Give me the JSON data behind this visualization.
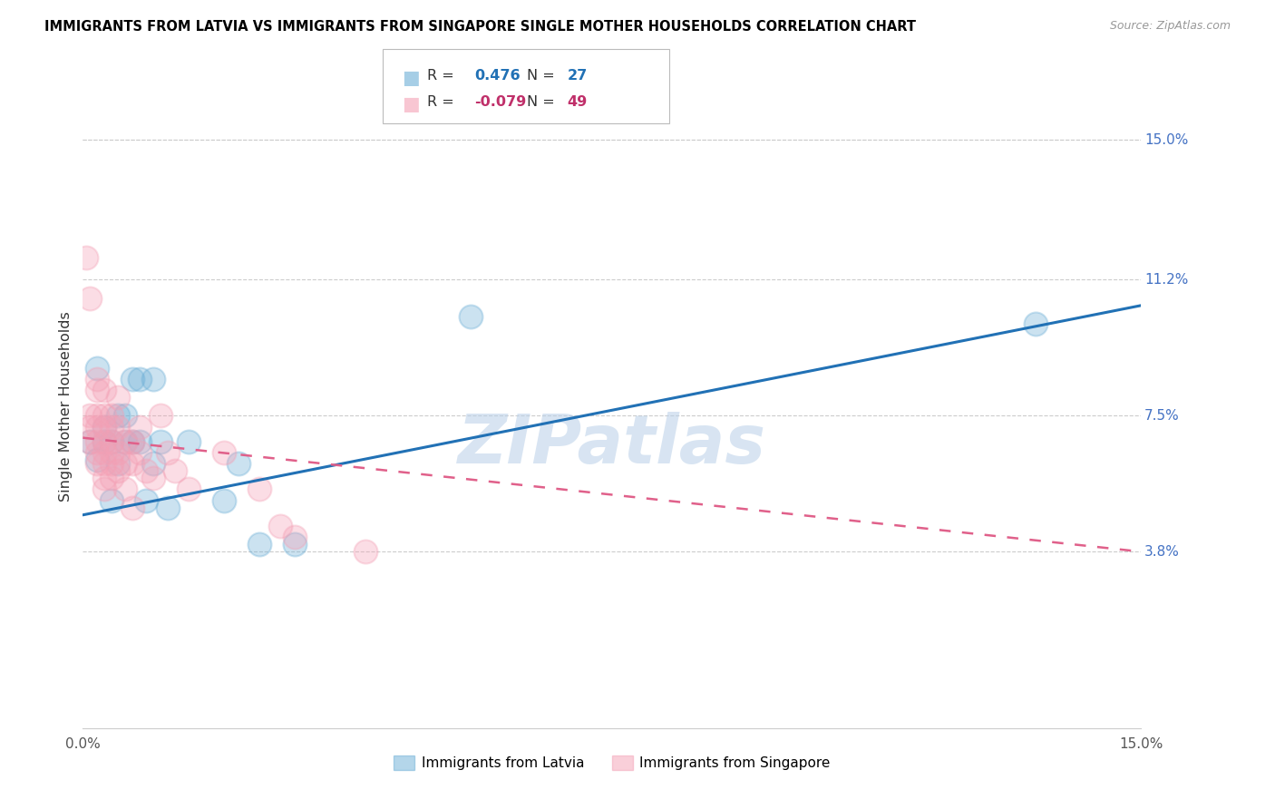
{
  "title": "IMMIGRANTS FROM LATVIA VS IMMIGRANTS FROM SINGAPORE SINGLE MOTHER HOUSEHOLDS CORRELATION CHART",
  "source": "Source: ZipAtlas.com",
  "ylabel": "Single Mother Households",
  "ylabel_ticks_right": [
    "15.0%",
    "11.2%",
    "7.5%",
    "3.8%"
  ],
  "ylabel_tick_vals": [
    0.15,
    0.112,
    0.075,
    0.038
  ],
  "xmin": 0.0,
  "xmax": 0.15,
  "ymin": -0.01,
  "ymax": 0.165,
  "watermark": "ZIPatlas",
  "legend_latvia_r": "0.476",
  "legend_latvia_n": "27",
  "legend_singapore_r": "-0.079",
  "legend_singapore_n": "49",
  "blue_color": "#6baed6",
  "pink_color": "#f4a0b5",
  "blue_line_color": "#2171b5",
  "pink_line_color": "#e0608a",
  "latvia_points": [
    [
      0.001,
      0.068
    ],
    [
      0.002,
      0.063
    ],
    [
      0.002,
      0.088
    ],
    [
      0.003,
      0.072
    ],
    [
      0.003,
      0.068
    ],
    [
      0.004,
      0.068
    ],
    [
      0.004,
      0.052
    ],
    [
      0.005,
      0.075
    ],
    [
      0.005,
      0.062
    ],
    [
      0.006,
      0.075
    ],
    [
      0.006,
      0.068
    ],
    [
      0.007,
      0.085
    ],
    [
      0.007,
      0.068
    ],
    [
      0.008,
      0.085
    ],
    [
      0.008,
      0.068
    ],
    [
      0.009,
      0.052
    ],
    [
      0.01,
      0.062
    ],
    [
      0.01,
      0.085
    ],
    [
      0.011,
      0.068
    ],
    [
      0.012,
      0.05
    ],
    [
      0.015,
      0.068
    ],
    [
      0.02,
      0.052
    ],
    [
      0.022,
      0.062
    ],
    [
      0.025,
      0.04
    ],
    [
      0.03,
      0.04
    ],
    [
      0.055,
      0.102
    ],
    [
      0.135,
      0.1
    ]
  ],
  "singapore_points": [
    [
      0.0005,
      0.118
    ],
    [
      0.001,
      0.107
    ],
    [
      0.001,
      0.075
    ],
    [
      0.001,
      0.072
    ],
    [
      0.001,
      0.068
    ],
    [
      0.002,
      0.085
    ],
    [
      0.002,
      0.082
    ],
    [
      0.002,
      0.075
    ],
    [
      0.002,
      0.072
    ],
    [
      0.002,
      0.068
    ],
    [
      0.002,
      0.065
    ],
    [
      0.002,
      0.062
    ],
    [
      0.003,
      0.082
    ],
    [
      0.003,
      0.075
    ],
    [
      0.003,
      0.072
    ],
    [
      0.003,
      0.068
    ],
    [
      0.003,
      0.065
    ],
    [
      0.003,
      0.062
    ],
    [
      0.003,
      0.058
    ],
    [
      0.003,
      0.055
    ],
    [
      0.004,
      0.075
    ],
    [
      0.004,
      0.072
    ],
    [
      0.004,
      0.068
    ],
    [
      0.004,
      0.065
    ],
    [
      0.004,
      0.062
    ],
    [
      0.004,
      0.058
    ],
    [
      0.005,
      0.08
    ],
    [
      0.005,
      0.072
    ],
    [
      0.005,
      0.065
    ],
    [
      0.005,
      0.06
    ],
    [
      0.006,
      0.068
    ],
    [
      0.006,
      0.062
    ],
    [
      0.006,
      0.055
    ],
    [
      0.007,
      0.068
    ],
    [
      0.007,
      0.062
    ],
    [
      0.007,
      0.05
    ],
    [
      0.008,
      0.072
    ],
    [
      0.008,
      0.065
    ],
    [
      0.009,
      0.06
    ],
    [
      0.01,
      0.058
    ],
    [
      0.011,
      0.075
    ],
    [
      0.012,
      0.065
    ],
    [
      0.013,
      0.06
    ],
    [
      0.015,
      0.055
    ],
    [
      0.02,
      0.065
    ],
    [
      0.025,
      0.055
    ],
    [
      0.028,
      0.045
    ],
    [
      0.03,
      0.042
    ],
    [
      0.04,
      0.038
    ]
  ],
  "latvia_line_x": [
    0.0,
    0.15
  ],
  "latvia_line_y": [
    0.048,
    0.105
  ],
  "singapore_line_x": [
    0.0,
    0.15
  ],
  "singapore_line_y": [
    0.069,
    0.038
  ]
}
